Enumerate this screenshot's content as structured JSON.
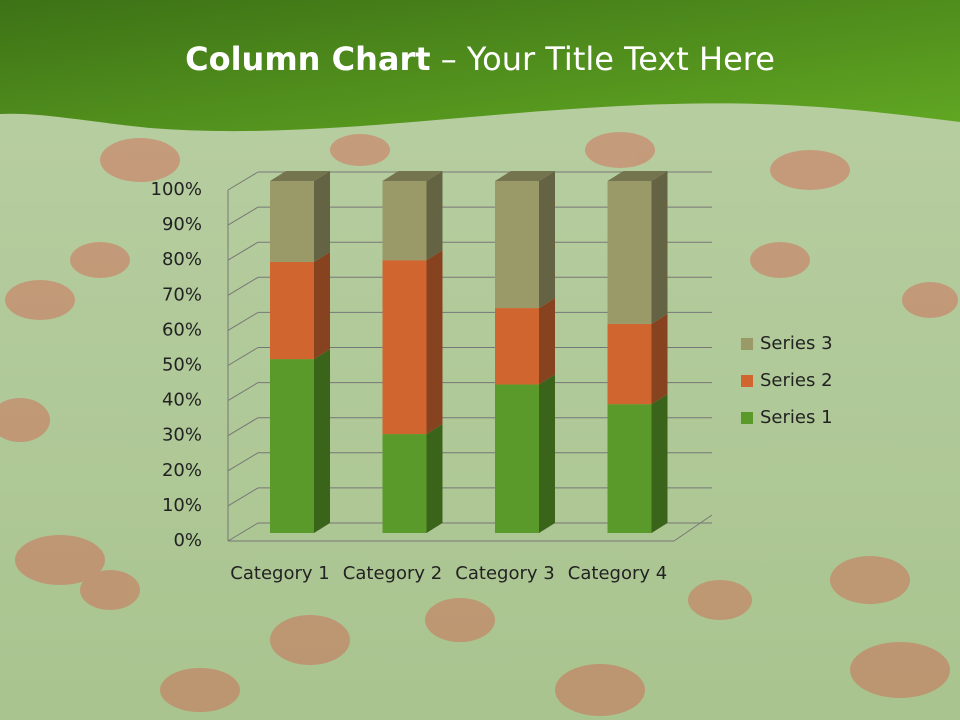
{
  "title_parts": [
    "Column Chart",
    "– Your Title Text Here"
  ],
  "chart_data": {
    "type": "stacked-bar-3d",
    "categories": [
      "Category 1",
      "Category 2",
      "Category 3",
      "Category 4"
    ],
    "series": [
      {
        "name": "Series 1",
        "color": "#5a9a2a",
        "values": [
          49.4,
          28.1,
          42.2,
          36.6
        ]
      },
      {
        "name": "Series 2",
        "color": "#d06530",
        "values": [
          27.6,
          49.4,
          21.7,
          22.8
        ]
      },
      {
        "name": "Series 3",
        "color": "#9a9a68",
        "values": [
          23.0,
          22.5,
          36.1,
          40.6
        ]
      }
    ],
    "ylim": [
      0,
      100
    ],
    "yticks": [
      {
        "value": 0,
        "label": "0%"
      },
      {
        "value": 10,
        "label": "10%"
      },
      {
        "value": 20,
        "label": "20%"
      },
      {
        "value": 30,
        "label": "30%"
      },
      {
        "value": 40,
        "label": "40%"
      },
      {
        "value": 50,
        "label": "50%"
      },
      {
        "value": 60,
        "label": "60%"
      },
      {
        "value": 70,
        "label": "70%"
      },
      {
        "value": 80,
        "label": "80%"
      },
      {
        "value": 90,
        "label": "90%"
      },
      {
        "value": 100,
        "label": "100%"
      }
    ],
    "grid": true,
    "legend": "right"
  }
}
